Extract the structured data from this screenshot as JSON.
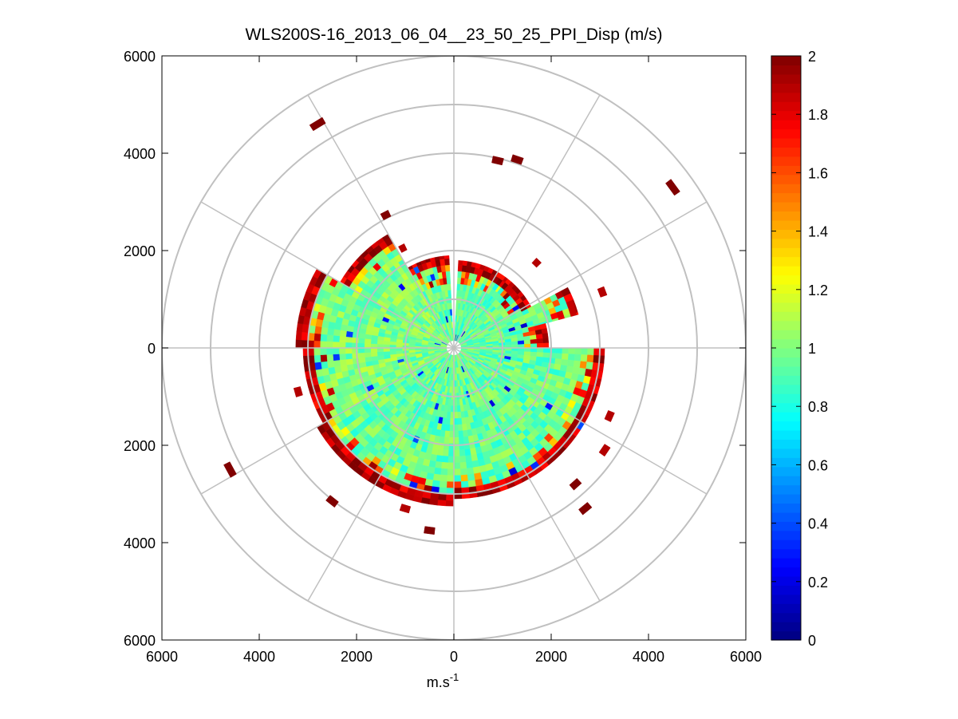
{
  "chart_data": {
    "type": "heatmap",
    "subtype": "polar-ppi",
    "title": "WLS200S-16_2013_06_04__23_50_25_PPI_Disp (m/s)",
    "xlabel": "m.s",
    "xlabel_superscript": "-1",
    "ylabel": "",
    "xlim": [
      -6000,
      6000
    ],
    "ylim": [
      -6000,
      6000
    ],
    "x_ticks": [
      -6000,
      -4000,
      -2000,
      0,
      2000,
      4000,
      6000
    ],
    "y_ticks": [
      -6000,
      -4000,
      -2000,
      0,
      2000,
      4000,
      6000
    ],
    "x_tick_labels": [
      "6000",
      "4000",
      "2000",
      "0",
      "2000",
      "4000",
      "6000"
    ],
    "y_tick_labels": [
      "6000",
      "4000",
      "2000",
      "0",
      "2000",
      "4000",
      "6000"
    ],
    "range_rings": [
      1000,
      2000,
      3000,
      4000,
      5000,
      6000
    ],
    "spokes_deg": [
      0,
      30,
      60,
      90,
      120,
      150,
      180,
      210,
      240,
      270,
      300,
      330
    ],
    "grid": true,
    "colorbar": {
      "min": 0,
      "max": 2,
      "ticks": [
        0,
        0.2,
        0.4,
        0.6,
        0.8,
        1,
        1.2,
        1.4,
        1.6,
        1.8,
        2
      ],
      "tick_labels": [
        "0",
        "0.2",
        "0.4",
        "0.6",
        "0.8",
        "1",
        "1.2",
        "1.4",
        "1.6",
        "1.8",
        "2"
      ],
      "colormap": "jet",
      "steps": 64
    },
    "data_summary": {
      "dominant_value": 0.9,
      "main_coverage_max_range_m": 3300,
      "gap_sector_deg": [
        0,
        3
      ],
      "edge_values": 2.0
    },
    "sectors": [
      {
        "az_start": 3,
        "az_end": 38,
        "r_min": 150,
        "r_max": 1800,
        "value": 0.92
      },
      {
        "az_start": 38,
        "az_end": 62,
        "r_min": 150,
        "r_max": 1800,
        "value": 0.95
      },
      {
        "az_start": 62,
        "az_end": 75,
        "r_min": 150,
        "r_max": 2650,
        "value": 0.95
      },
      {
        "az_start": 75,
        "az_end": 90,
        "r_min": 150,
        "r_max": 1950,
        "value": 0.92
      },
      {
        "az_start": 90,
        "az_end": 180,
        "r_min": 150,
        "r_max": 3100,
        "value": 0.95
      },
      {
        "az_start": 180,
        "az_end": 240,
        "r_min": 150,
        "r_max": 3250,
        "value": 0.95
      },
      {
        "az_start": 240,
        "az_end": 270,
        "r_min": 150,
        "r_max": 3100,
        "value": 1.0
      },
      {
        "az_start": 270,
        "az_end": 300,
        "r_min": 150,
        "r_max": 3250,
        "value": 1.0
      },
      {
        "az_start": 300,
        "az_end": 330,
        "r_min": 150,
        "r_max": 2700,
        "value": 1.0
      },
      {
        "az_start": 330,
        "az_end": 357,
        "r_min": 150,
        "r_max": 1900,
        "value": 0.95
      }
    ],
    "outliers": [
      {
        "x": -2800,
        "y": 4600,
        "value": 2.0
      },
      {
        "x": 900,
        "y": 3850,
        "value": 2.0
      },
      {
        "x": 1300,
        "y": 3870,
        "value": 2.0
      },
      {
        "x": 4500,
        "y": 3300,
        "value": 2.0
      },
      {
        "x": -1400,
        "y": 2730,
        "value": 2.0
      },
      {
        "x": -4600,
        "y": -2500,
        "value": 2.0
      },
      {
        "x": -2500,
        "y": -3150,
        "value": 2.0
      },
      {
        "x": -500,
        "y": -3750,
        "value": 2.0
      },
      {
        "x": 2700,
        "y": -3300,
        "value": 2.0
      },
      {
        "x": 2500,
        "y": -2800,
        "value": 2.0
      },
      {
        "x": 3200,
        "y": -1400,
        "value": 1.9
      },
      {
        "x": 3050,
        "y": 1150,
        "value": 1.9
      },
      {
        "x": 3100,
        "y": -2100,
        "value": 1.9
      },
      {
        "x": -3200,
        "y": -900,
        "value": 1.9
      },
      {
        "x": -1000,
        "y": -3300,
        "value": 1.9
      },
      {
        "x": 1700,
        "y": 1750,
        "value": 1.9
      },
      {
        "x": -1050,
        "y": 2050,
        "value": 1.9
      }
    ]
  }
}
